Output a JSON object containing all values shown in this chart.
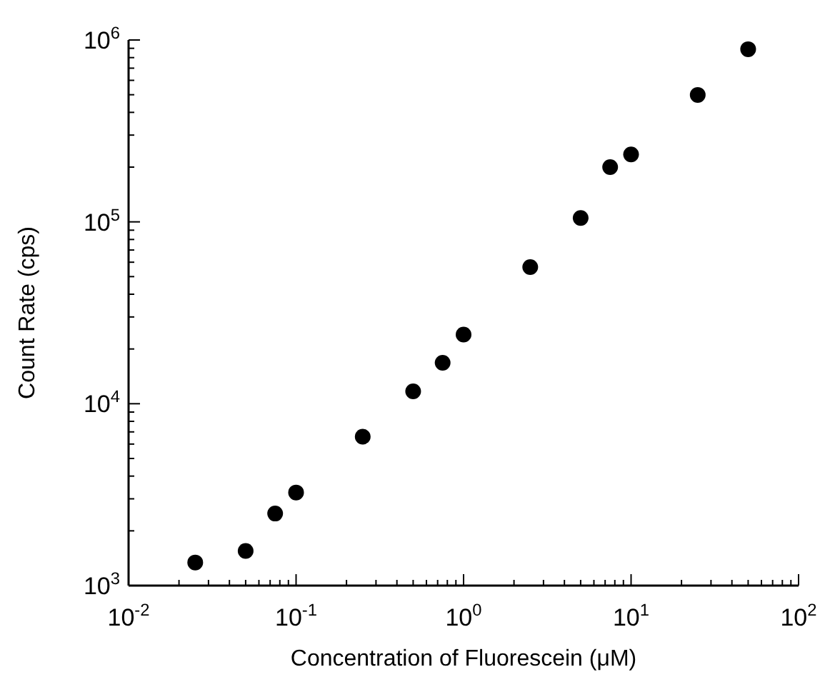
{
  "chart_data": {
    "type": "scatter",
    "xlabel": "Concentration of Fluorescein (μM)",
    "ylabel": "Count Rate (cps)",
    "log": "xy",
    "marker": "circle",
    "grid": false,
    "x": [
      0.025,
      0.05,
      0.075,
      0.1,
      0.25,
      0.5,
      0.75,
      1.0,
      2.5,
      5,
      7.5,
      10,
      25,
      50
    ],
    "series": [
      {
        "color": "#000000",
        "values": [
          1340,
          1550,
          2490,
          3250,
          6590,
          11700,
          16800,
          24000,
          56400,
          105000,
          200000,
          235000,
          499000,
          890000
        ]
      }
    ],
    "xlim": [
      0.01,
      100
    ],
    "ylim": [
      1000,
      1000000
    ],
    "xticks": [
      {
        "value": 0.01,
        "label": "10$^{-2}$"
      },
      {
        "value": 0.02,
        "label": null
      },
      {
        "value": 0.03,
        "label": null
      },
      {
        "value": 0.04,
        "label": null
      },
      {
        "value": 0.05,
        "label": null
      },
      {
        "value": 0.06,
        "label": null
      },
      {
        "value": 0.07,
        "label": null
      },
      {
        "value": 0.08,
        "label": null
      },
      {
        "value": 0.09,
        "label": null
      },
      {
        "value": 0.1,
        "label": "10$^{-1}$"
      },
      {
        "value": 0.2,
        "label": null
      },
      {
        "value": 0.3,
        "label": null
      },
      {
        "value": 0.4,
        "label": null
      },
      {
        "value": 0.5,
        "label": null
      },
      {
        "value": 0.6,
        "label": null
      },
      {
        "value": 0.7,
        "label": null
      },
      {
        "value": 0.8,
        "label": null
      },
      {
        "value": 0.9,
        "label": null
      },
      {
        "value": 1,
        "label": "10$^{0}$"
      },
      {
        "value": 2,
        "label": null
      },
      {
        "value": 3,
        "label": null
      },
      {
        "value": 4,
        "label": null
      },
      {
        "value": 5,
        "label": null
      },
      {
        "value": 6,
        "label": null
      },
      {
        "value": 7,
        "label": null
      },
      {
        "value": 8,
        "label": null
      },
      {
        "value": 9,
        "label": null
      },
      {
        "value": 10,
        "label": "10$^{1}$"
      },
      {
        "value": 20,
        "label": null
      },
      {
        "value": 30,
        "label": null
      },
      {
        "value": 40,
        "label": null
      },
      {
        "value": 50,
        "label": null
      },
      {
        "value": 60,
        "label": null
      },
      {
        "value": 70,
        "label": null
      },
      {
        "value": 80,
        "label": null
      },
      {
        "value": 90,
        "label": null
      },
      {
        "value": 100,
        "label": "10$^{2}$"
      }
    ],
    "yticks": [
      {
        "value": 1000,
        "label": "10$^{3}$"
      },
      {
        "value": 2000,
        "label": null
      },
      {
        "value": 3000,
        "label": null
      },
      {
        "value": 4000,
        "label": null
      },
      {
        "value": 5000,
        "label": null
      },
      {
        "value": 6000,
        "label": null
      },
      {
        "value": 7000,
        "label": null
      },
      {
        "value": 8000,
        "label": null
      },
      {
        "value": 9000,
        "label": null
      },
      {
        "value": 10000,
        "label": "10$^{4}$"
      },
      {
        "value": 20000,
        "label": null
      },
      {
        "value": 30000,
        "label": null
      },
      {
        "value": 40000,
        "label": null
      },
      {
        "value": 50000,
        "label": null
      },
      {
        "value": 60000,
        "label": null
      },
      {
        "value": 70000,
        "label": null
      },
      {
        "value": 80000,
        "label": null
      },
      {
        "value": 90000,
        "label": null
      },
      {
        "value": 100000,
        "label": "10$^{5}$"
      },
      {
        "value": 200000,
        "label": null
      },
      {
        "value": 300000,
        "label": null
      },
      {
        "value": 400000,
        "label": null
      },
      {
        "value": 500000,
        "label": null
      },
      {
        "value": 600000,
        "label": null
      },
      {
        "value": 700000,
        "label": null
      },
      {
        "value": 800000,
        "label": null
      },
      {
        "value": 900000,
        "label": null
      },
      {
        "value": 1000000,
        "label": "10$^{6}$"
      }
    ]
  }
}
